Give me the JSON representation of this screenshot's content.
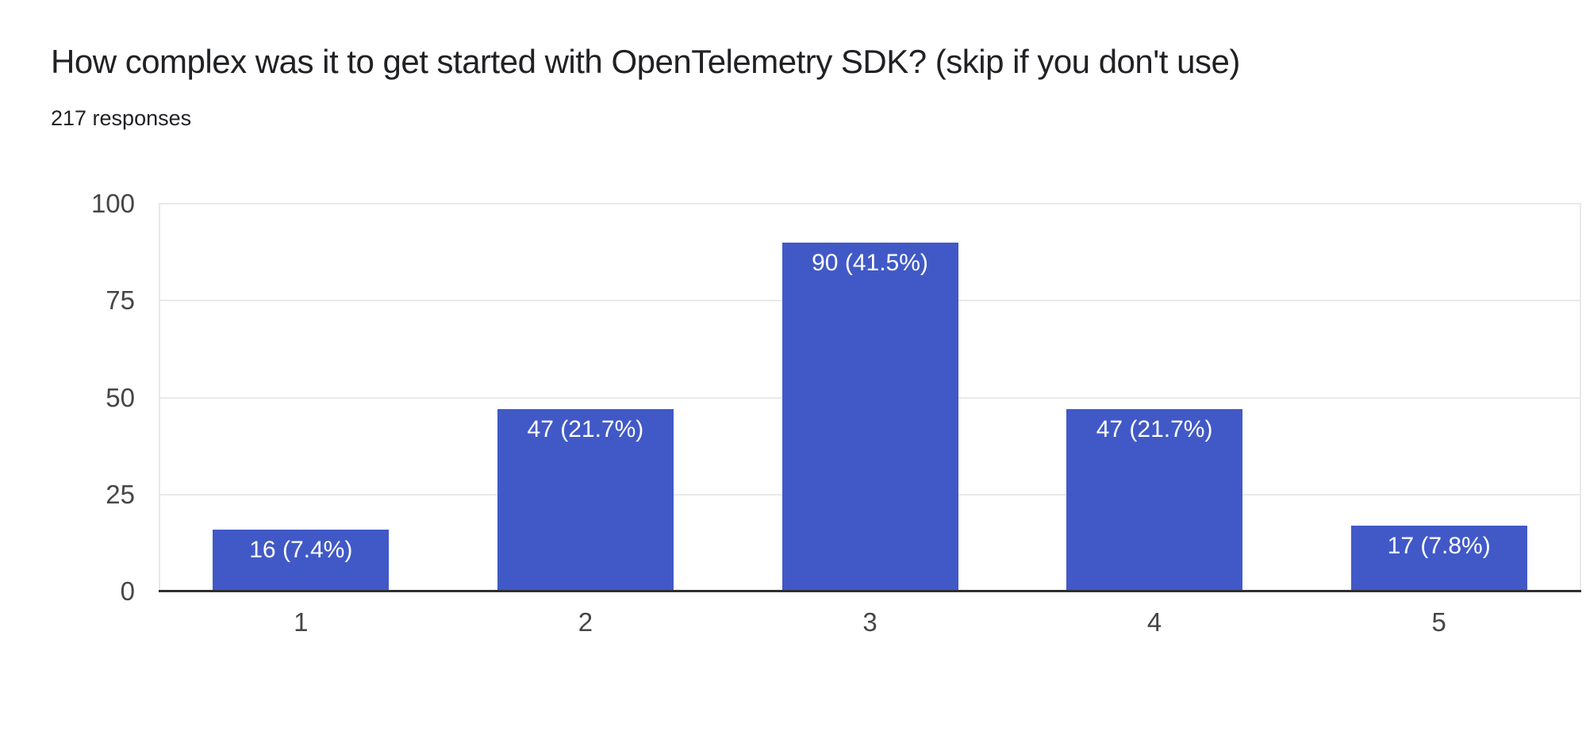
{
  "header": {
    "title": "How complex was it to get started with OpenTelemetry SDK? (skip if you don't use)",
    "responses": "217 responses"
  },
  "chart_data": {
    "type": "bar",
    "title": "How complex was it to get started with OpenTelemetry SDK? (skip if you don't use)",
    "subtitle": "217 responses",
    "total_responses": 217,
    "categories": [
      "1",
      "2",
      "3",
      "4",
      "5"
    ],
    "values": [
      16,
      47,
      90,
      47,
      17
    ],
    "percentages": [
      7.4,
      21.7,
      41.5,
      21.7,
      7.8
    ],
    "bar_labels": [
      "16 (7.4%)",
      "47 (21.7%)",
      "90 (41.5%)",
      "47 (21.7%)",
      "17 (7.8%)"
    ],
    "xlabel": "",
    "ylabel": "",
    "ylim": [
      0,
      100
    ],
    "yticks": [
      0,
      25,
      50,
      75,
      100
    ],
    "grid": true,
    "legend": "none",
    "colors": {
      "bar": "#4159c7",
      "bar_label_text": "#ffffff",
      "axis_text": "#464646",
      "gridline": "#e9e9e9",
      "baseline": "#2f2f2f",
      "title_text": "#202124",
      "background": "#ffffff"
    }
  }
}
